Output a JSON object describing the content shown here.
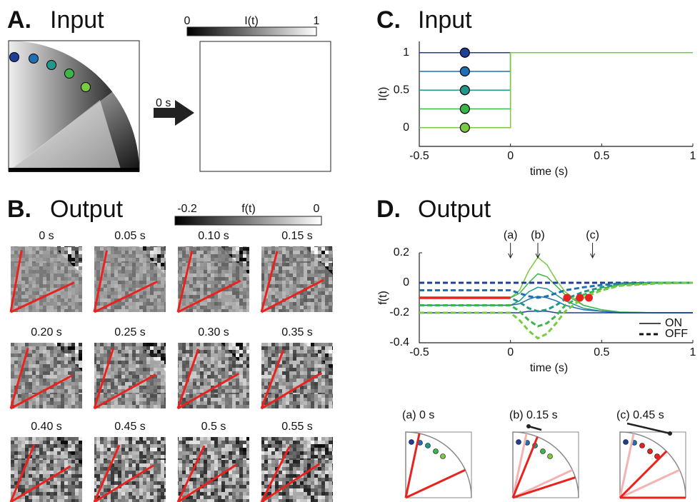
{
  "panel_a": {
    "label": "A.",
    "title": "Input",
    "colorbar_label": "I(t)",
    "colorbar_min": 0,
    "colorbar_max": 1,
    "arrow_label": "0 s"
  },
  "panel_b": {
    "label": "B.",
    "title": "Output",
    "colorbar_label": "f(t)",
    "colorbar_min": -0.2,
    "colorbar_max": 0,
    "frames": [
      "0 s",
      "0.05 s",
      "0.10 s",
      "0.15 s",
      "0.20 s",
      "0.25 s",
      "0.30 s",
      "0.35 s",
      "0.40 s",
      "0.45 s",
      "0.5 s",
      "0.55 s"
    ]
  },
  "chart_data": [
    {
      "type": "line",
      "label": "C.",
      "title": "Input",
      "xlabel": "time (s)",
      "ylabel": "I(t)",
      "x": [
        -0.5,
        0,
        0,
        1
      ],
      "series": [
        {
          "color": "#1f3f95",
          "values": [
            1,
            1,
            1,
            1
          ]
        },
        {
          "color": "#1f6fb5",
          "values": [
            0.75,
            0.75,
            1,
            1
          ]
        },
        {
          "color": "#21968a",
          "values": [
            0.5,
            0.5,
            1,
            1
          ]
        },
        {
          "color": "#3cb54a",
          "values": [
            0.25,
            0.25,
            1,
            1
          ]
        },
        {
          "color": "#7ac943",
          "values": [
            0,
            0,
            1,
            1
          ]
        }
      ],
      "marker_x": -0.25,
      "xlim": [
        -0.5,
        1
      ],
      "ylim": [
        -0.25,
        1.15
      ],
      "xticks": [
        -0.5,
        0,
        0.5,
        1
      ],
      "yticks": [
        0,
        0.5,
        1
      ]
    },
    {
      "type": "line",
      "label": "D.",
      "title": "Output",
      "xlabel": "time (s)",
      "ylabel": "f(t)",
      "x": [
        -0.5,
        0,
        0.05,
        0.1,
        0.15,
        0.2,
        0.25,
        0.3,
        0.4,
        0.5,
        0.6,
        0.8,
        1
      ],
      "series": [
        {
          "color": "#7ac943",
          "style": "solid",
          "values": [
            -0.1,
            -0.1,
            -0.05,
            0.08,
            0.17,
            0.12,
            0.02,
            -0.06,
            -0.15,
            -0.18,
            -0.195,
            -0.2,
            -0.2
          ]
        },
        {
          "color": "#3cb54a",
          "style": "solid",
          "values": [
            -0.1,
            -0.1,
            -0.07,
            0,
            0.06,
            0.04,
            -0.02,
            -0.08,
            -0.15,
            -0.18,
            -0.195,
            -0.2,
            -0.2
          ]
        },
        {
          "color": "#21968a",
          "style": "solid",
          "values": [
            -0.15,
            -0.15,
            -0.12,
            -0.06,
            -0.03,
            -0.04,
            -0.08,
            -0.12,
            -0.17,
            -0.19,
            -0.2,
            -0.2,
            -0.2
          ]
        },
        {
          "color": "#1f6fb5",
          "style": "solid",
          "values": [
            -0.15,
            -0.15,
            -0.14,
            -0.11,
            -0.09,
            -0.1,
            -0.12,
            -0.15,
            -0.18,
            -0.19,
            -0.2,
            -0.2,
            -0.2
          ]
        },
        {
          "color": "#1f3f95",
          "style": "solid",
          "values": [
            -0.2,
            -0.2,
            -0.2,
            -0.19,
            -0.19,
            -0.19,
            -0.2,
            -0.2,
            -0.2,
            -0.2,
            -0.2,
            -0.2,
            -0.2
          ]
        },
        {
          "color": "#1f3f95",
          "style": "dashed",
          "values": [
            0,
            0,
            0,
            0,
            0,
            0,
            0,
            0,
            0,
            0,
            0,
            0,
            0
          ]
        },
        {
          "color": "#1f6fb5",
          "style": "dashed",
          "values": [
            -0.05,
            -0.05,
            -0.07,
            -0.09,
            -0.1,
            -0.09,
            -0.07,
            -0.05,
            -0.03,
            -0.015,
            -0.005,
            0,
            0
          ]
        },
        {
          "color": "#21968a",
          "style": "dashed",
          "values": [
            -0.1,
            -0.1,
            -0.13,
            -0.17,
            -0.19,
            -0.18,
            -0.15,
            -0.11,
            -0.06,
            -0.03,
            -0.01,
            0,
            0
          ]
        },
        {
          "color": "#3cb54a",
          "style": "dashed",
          "values": [
            -0.15,
            -0.15,
            -0.19,
            -0.25,
            -0.29,
            -0.27,
            -0.22,
            -0.15,
            -0.08,
            -0.04,
            -0.015,
            0,
            0
          ]
        },
        {
          "color": "#7ac943",
          "style": "dashed",
          "values": [
            -0.2,
            -0.2,
            -0.25,
            -0.32,
            -0.37,
            -0.34,
            -0.27,
            -0.19,
            -0.1,
            -0.05,
            -0.02,
            -0.005,
            0
          ]
        },
        {
          "color": "#e8231f",
          "style": "solid",
          "width": 3.5,
          "values": [
            -0.1,
            -0.1,
            null,
            null,
            null,
            null,
            null,
            null,
            null,
            null,
            null,
            null,
            null
          ]
        }
      ],
      "points": {
        "x": [
          0.31,
          0.38,
          0.43
        ],
        "values": [
          -0.1,
          -0.1,
          -0.1
        ],
        "color": "#e8231f"
      },
      "annotations": [
        {
          "text": "(a)",
          "x": 0
        },
        {
          "text": "(b)",
          "x": 0.15
        },
        {
          "text": "(c)",
          "x": 0.45
        }
      ],
      "legend": [
        {
          "label": "ON",
          "style": "solid"
        },
        {
          "label": "OFF",
          "style": "dashed"
        }
      ],
      "legend_position": "lower right",
      "xlim": [
        -0.5,
        1
      ],
      "ylim": [
        -0.4,
        0.2
      ],
      "xticks": [
        -0.5,
        0,
        0.5,
        1
      ],
      "yticks": [
        -0.4,
        -0.2,
        0,
        0.2
      ]
    }
  ],
  "insets": [
    "(a) 0 s",
    "(b) 0.15 s",
    "(c) 0.45 s"
  ]
}
